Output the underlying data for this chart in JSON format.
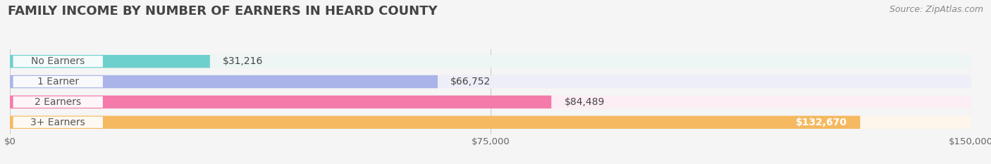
{
  "title": "FAMILY INCOME BY NUMBER OF EARNERS IN HEARD COUNTY",
  "source": "Source: ZipAtlas.com",
  "categories": [
    "No Earners",
    "1 Earner",
    "2 Earners",
    "3+ Earners"
  ],
  "values": [
    31216,
    66752,
    84489,
    132670
  ],
  "bar_colors": [
    "#6ed0cc",
    "#aab4e8",
    "#f47aaa",
    "#f5b961"
  ],
  "bar_bg_colors": [
    "#edf5f5",
    "#eeeef8",
    "#fceef4",
    "#fef6ea"
  ],
  "value_labels": [
    "$31,216",
    "$66,752",
    "$84,489",
    "$132,670"
  ],
  "x_ticks": [
    0,
    75000,
    150000
  ],
  "x_tick_labels": [
    "$0",
    "$75,000",
    "$150,000"
  ],
  "xlim": [
    0,
    150000
  ],
  "background_color": "#f5f5f5",
  "title_fontsize": 13,
  "label_fontsize": 10,
  "tick_fontsize": 9.5,
  "source_fontsize": 9
}
